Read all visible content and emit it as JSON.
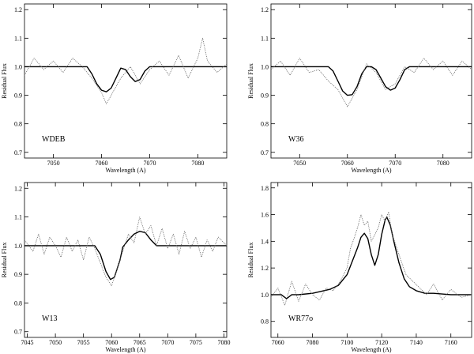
{
  "chart_data": [
    {
      "type": "line",
      "label": "WDEB",
      "xlabel": "Wavelength (A)",
      "ylabel": "Residual Flux",
      "xlim": [
        7044,
        7086
      ],
      "ylim": [
        0.68,
        1.22
      ],
      "xticks": [
        7050,
        7060,
        7070,
        7080
      ],
      "yticks": [
        0.7,
        0.8,
        0.9,
        1.0,
        1.1,
        1.2
      ],
      "ytick_labels": [
        "0.7",
        "0.8",
        "0.9",
        "1.0",
        "1.1",
        "1.2"
      ],
      "grid": false,
      "series": [
        {
          "style": "solid",
          "x": [
            7044,
            7057,
            7058,
            7059,
            7060,
            7061,
            7062,
            7063,
            7064,
            7065,
            7066,
            7067,
            7068,
            7069,
            7070,
            7071,
            7086
          ],
          "y": [
            1.0,
            1.0,
            0.975,
            0.94,
            0.918,
            0.912,
            0.925,
            0.96,
            0.995,
            0.99,
            0.965,
            0.948,
            0.955,
            0.985,
            1.0,
            1.0,
            1.0
          ]
        },
        {
          "style": "dotted",
          "x": [
            7044,
            7046,
            7048,
            7050,
            7052,
            7054,
            7056,
            7058,
            7060,
            7061,
            7062,
            7064,
            7066,
            7068,
            7070,
            7072,
            7074,
            7076,
            7078,
            7080,
            7081,
            7082,
            7084,
            7086
          ],
          "y": [
            0.97,
            1.03,
            0.99,
            1.02,
            0.98,
            1.03,
            1.0,
            0.96,
            0.91,
            0.87,
            0.9,
            0.96,
            1.0,
            0.94,
            0.99,
            1.02,
            0.97,
            1.04,
            0.96,
            1.03,
            1.1,
            1.02,
            0.98,
            1.01
          ]
        }
      ]
    },
    {
      "type": "line",
      "label": "W36",
      "xlabel": "Wavelength (A)",
      "ylabel": "Residual Flux",
      "xlim": [
        7044,
        7086
      ],
      "ylim": [
        0.68,
        1.22
      ],
      "xticks": [
        7050,
        7060,
        7070,
        7080
      ],
      "yticks": [
        0.7,
        0.8,
        0.9,
        1.0,
        1.1,
        1.2
      ],
      "ytick_labels": [
        "0.7",
        "0.8",
        "0.9",
        "1.0",
        "1.1",
        "1.2"
      ],
      "grid": false,
      "series": [
        {
          "style": "solid",
          "x": [
            7044,
            7056,
            7057,
            7058,
            7059,
            7060,
            7061,
            7062,
            7063,
            7064,
            7065,
            7066,
            7067,
            7068,
            7069,
            7070,
            7071,
            7072,
            7073,
            7086
          ],
          "y": [
            1.0,
            1.0,
            0.985,
            0.95,
            0.915,
            0.9,
            0.902,
            0.93,
            0.975,
            1.0,
            1.0,
            0.99,
            0.96,
            0.93,
            0.918,
            0.925,
            0.955,
            0.99,
            1.0,
            1.0
          ]
        },
        {
          "style": "dotted",
          "x": [
            7044,
            7046,
            7048,
            7050,
            7052,
            7054,
            7056,
            7058,
            7060,
            7062,
            7064,
            7066,
            7068,
            7070,
            7072,
            7074,
            7076,
            7078,
            7080,
            7082,
            7084,
            7086
          ],
          "y": [
            0.99,
            1.02,
            0.97,
            1.03,
            0.98,
            0.99,
            0.95,
            0.92,
            0.86,
            0.92,
            1.01,
            0.98,
            0.92,
            0.94,
            1.0,
            0.98,
            1.03,
            0.99,
            1.02,
            0.97,
            1.02,
            0.99
          ]
        }
      ]
    },
    {
      "type": "line",
      "label": "W13",
      "xlabel": "Wavelength (A)",
      "ylabel": "Residual Flux",
      "xlim": [
        7044.5,
        7080.5
      ],
      "ylim": [
        0.68,
        1.22
      ],
      "xticks": [
        7045,
        7050,
        7055,
        7060,
        7065,
        7070,
        7075,
        7080
      ],
      "yticks": [
        0.7,
        0.8,
        0.9,
        1.0,
        1.1,
        1.2
      ],
      "ytick_labels": [
        "0.7",
        "0.8",
        "0.9",
        "1.0",
        "1.1",
        "1.2"
      ],
      "grid": false,
      "series": [
        {
          "style": "solid",
          "x": [
            7044.5,
            7057,
            7058,
            7059,
            7059.8,
            7060.5,
            7061.5,
            7062,
            7063,
            7064,
            7065,
            7066,
            7067,
            7068,
            7080.5
          ],
          "y": [
            1.0,
            1.0,
            0.97,
            0.91,
            0.882,
            0.89,
            0.95,
            0.995,
            1.02,
            1.04,
            1.05,
            1.045,
            1.02,
            1.0,
            1.0
          ]
        },
        {
          "style": "dotted",
          "x": [
            7044.5,
            7046,
            7047,
            7048,
            7049,
            7050,
            7051,
            7052,
            7053,
            7054,
            7055,
            7056,
            7057,
            7058,
            7059,
            7060,
            7061,
            7062,
            7063,
            7064,
            7065,
            7066,
            7067,
            7068,
            7069,
            7070,
            7071,
            7072,
            7073,
            7074,
            7075,
            7076,
            7077,
            7078,
            7079,
            7080.5
          ],
          "y": [
            1.02,
            0.98,
            1.04,
            0.97,
            1.03,
            1.0,
            0.96,
            1.03,
            0.98,
            1.02,
            0.95,
            1.03,
            0.99,
            0.94,
            0.89,
            0.86,
            0.92,
            0.98,
            1.04,
            1.01,
            1.1,
            1.04,
            1.07,
            1.0,
            1.06,
            0.99,
            1.04,
            0.97,
            1.05,
            0.99,
            1.03,
            0.96,
            1.02,
            0.98,
            1.03,
            1.0
          ]
        }
      ]
    },
    {
      "type": "line",
      "label": "WR77o",
      "xlabel": "Wavelength (A)",
      "ylabel": "Residual Flux",
      "xlim": [
        7056,
        7172
      ],
      "ylim": [
        0.68,
        1.84
      ],
      "xticks": [
        7060,
        7080,
        7100,
        7120,
        7140,
        7160
      ],
      "yticks": [
        0.8,
        1.0,
        1.2,
        1.4,
        1.6,
        1.8
      ],
      "ytick_labels": [
        "0.8",
        "1.0",
        "1.2",
        "1.4",
        "1.6",
        "1.8"
      ],
      "grid": false,
      "series": [
        {
          "style": "solid",
          "x": [
            7056,
            7062,
            7065,
            7068,
            7072,
            7080,
            7090,
            7095,
            7100,
            7103,
            7106,
            7108,
            7110,
            7112,
            7114,
            7116,
            7118,
            7120,
            7122,
            7123,
            7125,
            7127,
            7130,
            7133,
            7136,
            7140,
            7145,
            7150,
            7160,
            7172
          ],
          "y": [
            1.0,
            1.0,
            0.97,
            1.0,
            1.0,
            1.01,
            1.04,
            1.07,
            1.15,
            1.25,
            1.35,
            1.43,
            1.46,
            1.42,
            1.3,
            1.22,
            1.3,
            1.45,
            1.56,
            1.58,
            1.52,
            1.4,
            1.24,
            1.12,
            1.06,
            1.03,
            1.01,
            1.01,
            1.0,
            1.0
          ]
        },
        {
          "style": "dotted",
          "x": [
            7056,
            7060,
            7064,
            7068,
            7072,
            7076,
            7080,
            7084,
            7088,
            7092,
            7096,
            7100,
            7102,
            7104,
            7106,
            7108,
            7110,
            7112,
            7114,
            7116,
            7118,
            7120,
            7122,
            7124,
            7126,
            7128,
            7130,
            7134,
            7138,
            7142,
            7146,
            7150,
            7155,
            7160,
            7166,
            7172
          ],
          "y": [
            0.98,
            1.05,
            0.92,
            1.1,
            0.95,
            1.08,
            1.0,
            0.96,
            1.05,
            1.03,
            1.1,
            1.2,
            1.35,
            1.42,
            1.5,
            1.6,
            1.52,
            1.55,
            1.4,
            1.45,
            1.5,
            1.6,
            1.55,
            1.62,
            1.45,
            1.38,
            1.3,
            1.15,
            1.1,
            1.05,
            1.0,
            1.08,
            0.96,
            1.04,
            0.98,
            1.0
          ]
        }
      ]
    }
  ]
}
